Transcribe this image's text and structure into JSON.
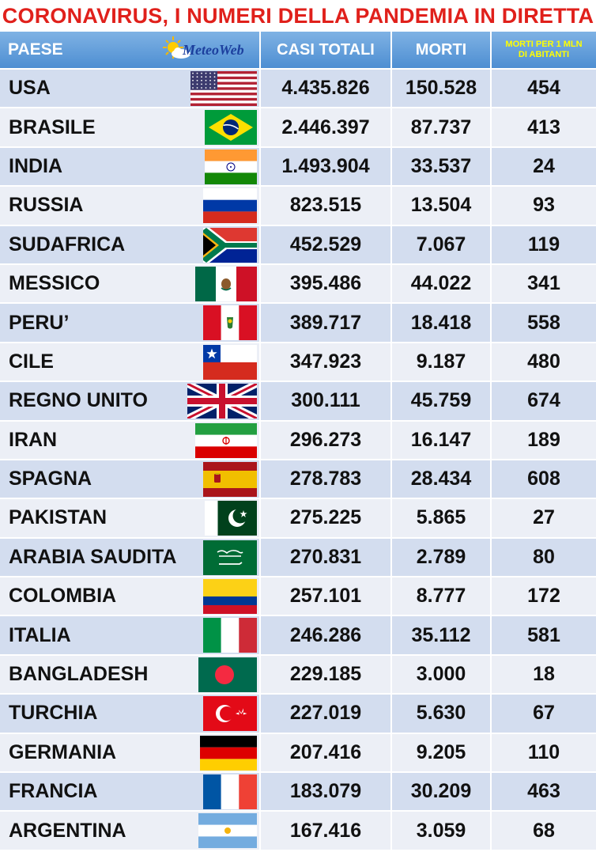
{
  "title": "CORONAVIRUS, I NUMERI DELLA PANDEMIA IN DIRETTA",
  "header": {
    "paese": "PAESE",
    "logo": "MeteoWeb",
    "casi_totali": "CASI TOTALI",
    "morti": "MORTI",
    "morti_mln_line1": "MORTI PER 1 MLN",
    "morti_mln_line2": "DI ABITANTI"
  },
  "colors": {
    "title": "#e0201b",
    "header_bg": "#5f9ad8",
    "row_odd": "#d3ddef",
    "row_even": "#eceff6",
    "mln_header_text": "#ffff00"
  },
  "rows": [
    {
      "paese": "USA",
      "flag": "usa-flag",
      "casi": "4.435.826",
      "morti": "150.528",
      "mln": "454"
    },
    {
      "paese": "BRASILE",
      "flag": "brazil-flag",
      "casi": "2.446.397",
      "morti": "87.737",
      "mln": "413"
    },
    {
      "paese": "INDIA",
      "flag": "india-flag",
      "casi": "1.493.904",
      "morti": "33.537",
      "mln": "24"
    },
    {
      "paese": "RUSSIA",
      "flag": "russia-flag",
      "casi": "823.515",
      "morti": "13.504",
      "mln": "93"
    },
    {
      "paese": "SUDAFRICA",
      "flag": "south-africa-flag",
      "casi": "452.529",
      "morti": "7.067",
      "mln": "119"
    },
    {
      "paese": "MESSICO",
      "flag": "mexico-flag",
      "casi": "395.486",
      "morti": "44.022",
      "mln": "341"
    },
    {
      "paese": "PERU’",
      "flag": "peru-flag",
      "casi": "389.717",
      "morti": "18.418",
      "mln": "558"
    },
    {
      "paese": "CILE",
      "flag": "chile-flag",
      "casi": "347.923",
      "morti": "9.187",
      "mln": "480"
    },
    {
      "paese": "REGNO UNITO",
      "flag": "uk-flag",
      "casi": "300.111",
      "morti": "45.759",
      "mln": "674"
    },
    {
      "paese": "IRAN",
      "flag": "iran-flag",
      "casi": "296.273",
      "morti": "16.147",
      "mln": "189"
    },
    {
      "paese": "SPAGNA",
      "flag": "spain-flag",
      "casi": "278.783",
      "morti": "28.434",
      "mln": "608"
    },
    {
      "paese": "PAKISTAN",
      "flag": "pakistan-flag",
      "casi": "275.225",
      "morti": "5.865",
      "mln": "27"
    },
    {
      "paese": "ARABIA SAUDITA",
      "flag": "saudi-arabia-flag",
      "casi": "270.831",
      "morti": "2.789",
      "mln": "80"
    },
    {
      "paese": "COLOMBIA",
      "flag": "colombia-flag",
      "casi": "257.101",
      "morti": "8.777",
      "mln": "172"
    },
    {
      "paese": "ITALIA",
      "flag": "italy-flag",
      "casi": "246.286",
      "morti": "35.112",
      "mln": "581"
    },
    {
      "paese": "BANGLADESH",
      "flag": "bangladesh-flag",
      "casi": "229.185",
      "morti": "3.000",
      "mln": "18"
    },
    {
      "paese": "TURCHIA",
      "flag": "turkey-flag",
      "casi": "227.019",
      "morti": "5.630",
      "mln": "67"
    },
    {
      "paese": "GERMANIA",
      "flag": "germany-flag",
      "casi": "207.416",
      "morti": "9.205",
      "mln": "110"
    },
    {
      "paese": "FRANCIA",
      "flag": "france-flag",
      "casi": "183.079",
      "morti": "30.209",
      "mln": "463"
    },
    {
      "paese": "ARGENTINA",
      "flag": "argentina-flag",
      "casi": "167.416",
      "morti": "3.059",
      "mln": "68"
    }
  ]
}
